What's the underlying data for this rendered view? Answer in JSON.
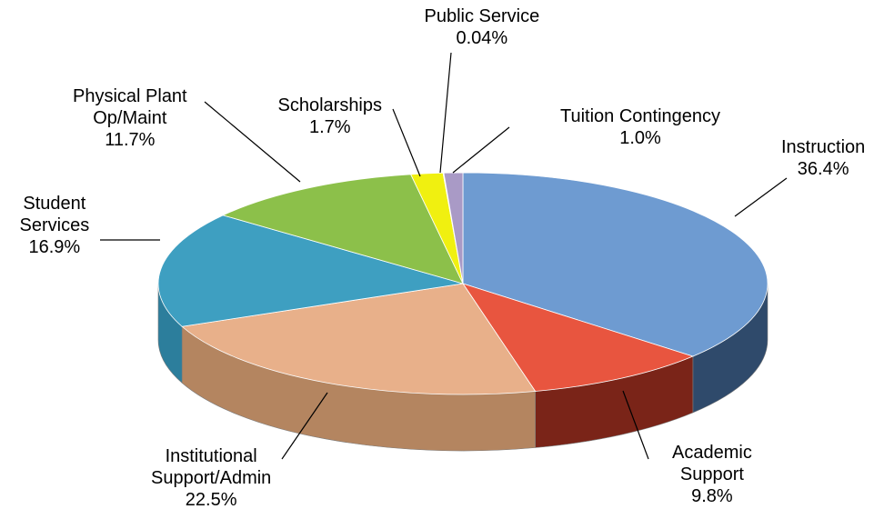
{
  "chart_data": {
    "type": "pie",
    "title": "",
    "slices": [
      {
        "name": "Instruction",
        "label_lines": [
          "Instruction"
        ],
        "value": 36.4,
        "value_label": "36.4%",
        "color": "#6E9BD1",
        "side_color": "#2F4A6B"
      },
      {
        "name": "Academic Support",
        "label_lines": [
          "Academic",
          "Support"
        ],
        "value": 9.8,
        "value_label": "9.8%",
        "color": "#E8553F",
        "side_color": "#7A2418"
      },
      {
        "name": "Institutional Support/Admin",
        "label_lines": [
          "Institutional",
          "Support/Admin"
        ],
        "value": 22.5,
        "value_label": "22.5%",
        "color": "#E8B08A",
        "side_color": "#B48560"
      },
      {
        "name": "Student Services",
        "label_lines": [
          "Student",
          "Services"
        ],
        "value": 16.9,
        "value_label": "16.9%",
        "color": "#3E9FC1",
        "side_color": "#2C7E9C"
      },
      {
        "name": "Physical Plant Op/Maint",
        "label_lines": [
          "Physical Plant",
          "Op/Maint"
        ],
        "value": 11.7,
        "value_label": "11.7%",
        "color": "#8CC04A",
        "side_color": "#5E8A2B"
      },
      {
        "name": "Scholarships",
        "label_lines": [
          "Scholarships"
        ],
        "value": 1.7,
        "value_label": "1.7%",
        "color": "#F0F010",
        "side_color": "#B0B000"
      },
      {
        "name": "Public Service",
        "label_lines": [
          "Public Service"
        ],
        "value": 0.04,
        "value_label": "0.04%",
        "color": "#2E6FB0",
        "side_color": "#1E4C7A"
      },
      {
        "name": "Tuition Contingency",
        "label_lines": [
          "Tuition Contingency"
        ],
        "value": 1.0,
        "value_label": "1.0%",
        "color": "#A99AC6",
        "side_color": "#6F638A"
      }
    ]
  }
}
